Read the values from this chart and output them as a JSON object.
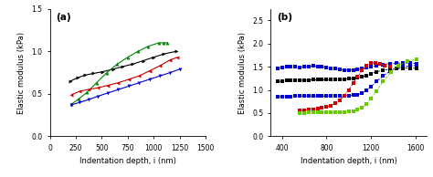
{
  "panel_a": {
    "title": "(a)",
    "xlabel": "Indentation depth, i (nm)",
    "ylabel": "Elastic modulus (kPa)",
    "xlim": [
      0,
      1500
    ],
    "ylim": [
      0.0,
      1.5
    ],
    "xticks": [
      0,
      250,
      500,
      750,
      1000,
      1250,
      1500
    ],
    "yticks": [
      0.0,
      0.5,
      1.0,
      1.5
    ],
    "series": [
      {
        "color": "#000000",
        "marker": ">",
        "x": [
          200,
          270,
          340,
          420,
          510,
          610,
          700,
          800,
          900,
          1000,
          1100,
          1220
        ],
        "y": [
          0.65,
          0.69,
          0.72,
          0.74,
          0.76,
          0.79,
          0.82,
          0.85,
          0.89,
          0.93,
          0.97,
          1.0
        ]
      },
      {
        "color": "#008000",
        "marker": "^",
        "x": [
          210,
          280,
          360,
          450,
          550,
          650,
          750,
          850,
          950,
          1050,
          1100,
          1130
        ],
        "y": [
          0.38,
          0.44,
          0.52,
          0.63,
          0.75,
          0.85,
          0.93,
          1.0,
          1.06,
          1.1,
          1.1,
          1.1
        ]
      },
      {
        "color": "#cc0000",
        "marker": "<",
        "x": [
          210,
          290,
          370,
          460,
          560,
          660,
          760,
          860,
          960,
          1060,
          1160,
          1230
        ],
        "y": [
          0.49,
          0.53,
          0.55,
          0.57,
          0.6,
          0.63,
          0.67,
          0.71,
          0.77,
          0.83,
          0.9,
          0.93
        ]
      },
      {
        "color": "#0000cc",
        "marker": "v",
        "x": [
          210,
          290,
          370,
          460,
          560,
          660,
          760,
          860,
          960,
          1060,
          1160,
          1250
        ],
        "y": [
          0.37,
          0.4,
          0.43,
          0.47,
          0.51,
          0.55,
          0.59,
          0.63,
          0.67,
          0.71,
          0.75,
          0.79
        ]
      }
    ]
  },
  "panel_b": {
    "title": "(b)",
    "xlabel": "Indentation depth, i (nm)",
    "ylabel": "Elastic modulus (kPa)",
    "xlim": [
      300,
      1700
    ],
    "ylim": [
      0.0,
      2.75
    ],
    "xticks": [
      400,
      800,
      1200,
      1600
    ],
    "yticks": [
      0.0,
      0.5,
      1.0,
      1.5,
      2.0,
      2.5
    ],
    "series": [
      {
        "color": "#0000cc",
        "marker": "s",
        "linestyle": "none",
        "x": [
          360,
          400,
          440,
          480,
          520,
          560,
          600,
          640,
          680,
          720,
          760,
          800,
          840,
          880,
          920,
          960,
          1000,
          1040,
          1080,
          1120,
          1160,
          1200,
          1250,
          1310,
          1370,
          1430,
          1490,
          1550,
          1610
        ],
        "y": [
          1.47,
          1.49,
          1.5,
          1.51,
          1.5,
          1.49,
          1.5,
          1.51,
          1.52,
          1.51,
          1.5,
          1.49,
          1.47,
          1.46,
          1.44,
          1.43,
          1.43,
          1.43,
          1.44,
          1.46,
          1.48,
          1.5,
          1.53,
          1.55,
          1.57,
          1.58,
          1.58,
          1.58,
          1.57
        ]
      },
      {
        "color": "#0000cc",
        "marker": "s",
        "linestyle": "none",
        "x": [
          360,
          400,
          440,
          480,
          520,
          560,
          600,
          640,
          680,
          720,
          760,
          800,
          840,
          880,
          920,
          960,
          1000,
          1040,
          1080,
          1120,
          1160,
          1200,
          1250,
          1310,
          1370,
          1430,
          1490,
          1550,
          1610
        ],
        "y": [
          0.85,
          0.86,
          0.86,
          0.86,
          0.87,
          0.87,
          0.87,
          0.87,
          0.87,
          0.87,
          0.87,
          0.87,
          0.87,
          0.87,
          0.87,
          0.87,
          0.88,
          0.89,
          0.9,
          0.93,
          0.99,
          1.07,
          1.18,
          1.3,
          1.4,
          1.47,
          1.5,
          1.52,
          1.53
        ]
      },
      {
        "color": "#000000",
        "marker": "s",
        "linestyle": "none",
        "x": [
          360,
          400,
          440,
          480,
          520,
          560,
          600,
          640,
          680,
          720,
          760,
          800,
          840,
          880,
          920,
          960,
          1000,
          1040,
          1080,
          1120,
          1160,
          1200,
          1250,
          1310,
          1370,
          1430,
          1490,
          1550,
          1610
        ],
        "y": [
          1.18,
          1.19,
          1.2,
          1.2,
          1.21,
          1.21,
          1.21,
          1.21,
          1.22,
          1.22,
          1.22,
          1.22,
          1.22,
          1.23,
          1.23,
          1.23,
          1.24,
          1.25,
          1.26,
          1.28,
          1.31,
          1.35,
          1.39,
          1.43,
          1.45,
          1.46,
          1.47,
          1.47,
          1.47
        ]
      },
      {
        "color": "#cc0000",
        "marker": "s",
        "linestyle": "none",
        "x": [
          560,
          600,
          640,
          680,
          720,
          760,
          800,
          840,
          880,
          920,
          960,
          1000,
          1040,
          1080,
          1120,
          1160,
          1200,
          1240,
          1280,
          1320,
          1370
        ],
        "y": [
          0.55,
          0.56,
          0.57,
          0.58,
          0.59,
          0.61,
          0.63,
          0.66,
          0.71,
          0.78,
          0.88,
          1.0,
          1.14,
          1.28,
          1.42,
          1.52,
          1.58,
          1.59,
          1.57,
          1.53,
          1.5
        ]
      },
      {
        "color": "#66cc00",
        "marker": "s",
        "linestyle": "none",
        "x": [
          560,
          600,
          640,
          680,
          720,
          760,
          800,
          840,
          880,
          920,
          960,
          1000,
          1040,
          1080,
          1120,
          1160,
          1200,
          1250,
          1310,
          1380,
          1450,
          1530,
          1610
        ],
        "y": [
          0.5,
          0.5,
          0.51,
          0.51,
          0.51,
          0.52,
          0.52,
          0.52,
          0.52,
          0.52,
          0.52,
          0.53,
          0.54,
          0.57,
          0.62,
          0.7,
          0.82,
          0.98,
          1.18,
          1.38,
          1.53,
          1.62,
          1.66
        ]
      }
    ]
  }
}
